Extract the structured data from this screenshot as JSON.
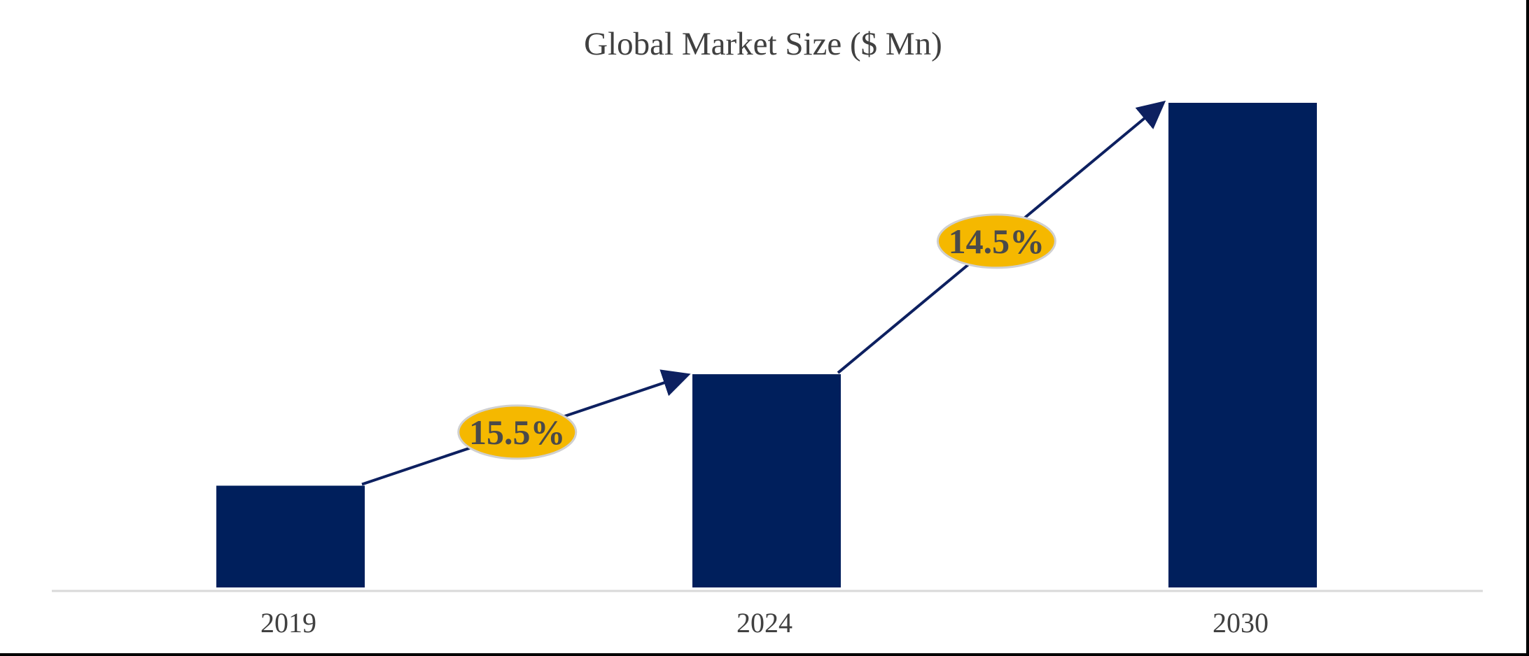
{
  "chart_data": {
    "type": "bar",
    "title": "Global Market Size ($ Mn)",
    "xlabel": "",
    "ylabel": "",
    "categories": [
      "2019",
      "2024",
      "2030"
    ],
    "values": [
      21,
      44,
      100
    ],
    "ylim": [
      0,
      100
    ],
    "y_axis_visible": false,
    "grid": false,
    "legend": "none",
    "annotations": [
      {
        "label": "15.5%",
        "from": "2019",
        "to": "2024"
      },
      {
        "label": "14.5%",
        "from": "2024",
        "to": "2030"
      }
    ]
  },
  "colors": {
    "bar": "#001f5c",
    "arrow": "#0d2060",
    "badge_fill": "#f5b800",
    "badge_stroke": "#d0d0d0",
    "axis": "#d9d9d9",
    "text": "#404040"
  }
}
